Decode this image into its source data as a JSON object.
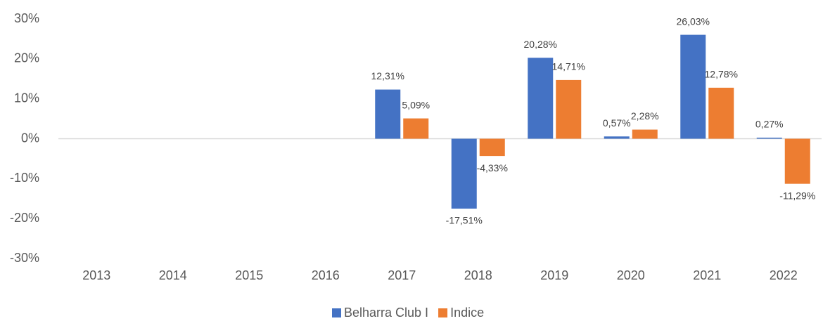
{
  "chart_data": {
    "type": "bar",
    "categories": [
      "2013",
      "2014",
      "2015",
      "2016",
      "2017",
      "2018",
      "2019",
      "2020",
      "2021",
      "2022"
    ],
    "series": [
      {
        "name": "Belharra Club I",
        "color": "#4472c4",
        "values": [
          null,
          null,
          null,
          null,
          12.31,
          -17.51,
          20.28,
          0.57,
          26.03,
          0.27
        ],
        "value_labels": [
          null,
          null,
          null,
          null,
          "12,31%",
          "-17,51%",
          "20,28%",
          "0,57%",
          "26,03%",
          "0,27%"
        ]
      },
      {
        "name": "Indice",
        "color": "#ed7d31",
        "values": [
          null,
          null,
          null,
          null,
          5.09,
          -4.33,
          14.71,
          2.28,
          12.78,
          -11.29
        ],
        "value_labels": [
          null,
          null,
          null,
          null,
          "5,09%",
          "-4,33%",
          "14,71%",
          "2,28%",
          "12,78%",
          "-11,29%"
        ]
      }
    ],
    "ylim": [
      -30,
      30
    ],
    "yticks": [
      {
        "value": -30,
        "label": "-30%"
      },
      {
        "value": -20,
        "label": "-20%"
      },
      {
        "value": -10,
        "label": "-10%"
      },
      {
        "value": 0,
        "label": "0%"
      },
      {
        "value": 10,
        "label": "10%"
      },
      {
        "value": 20,
        "label": "20%"
      },
      {
        "value": 30,
        "label": "30%"
      }
    ],
    "legend": "bottom"
  }
}
